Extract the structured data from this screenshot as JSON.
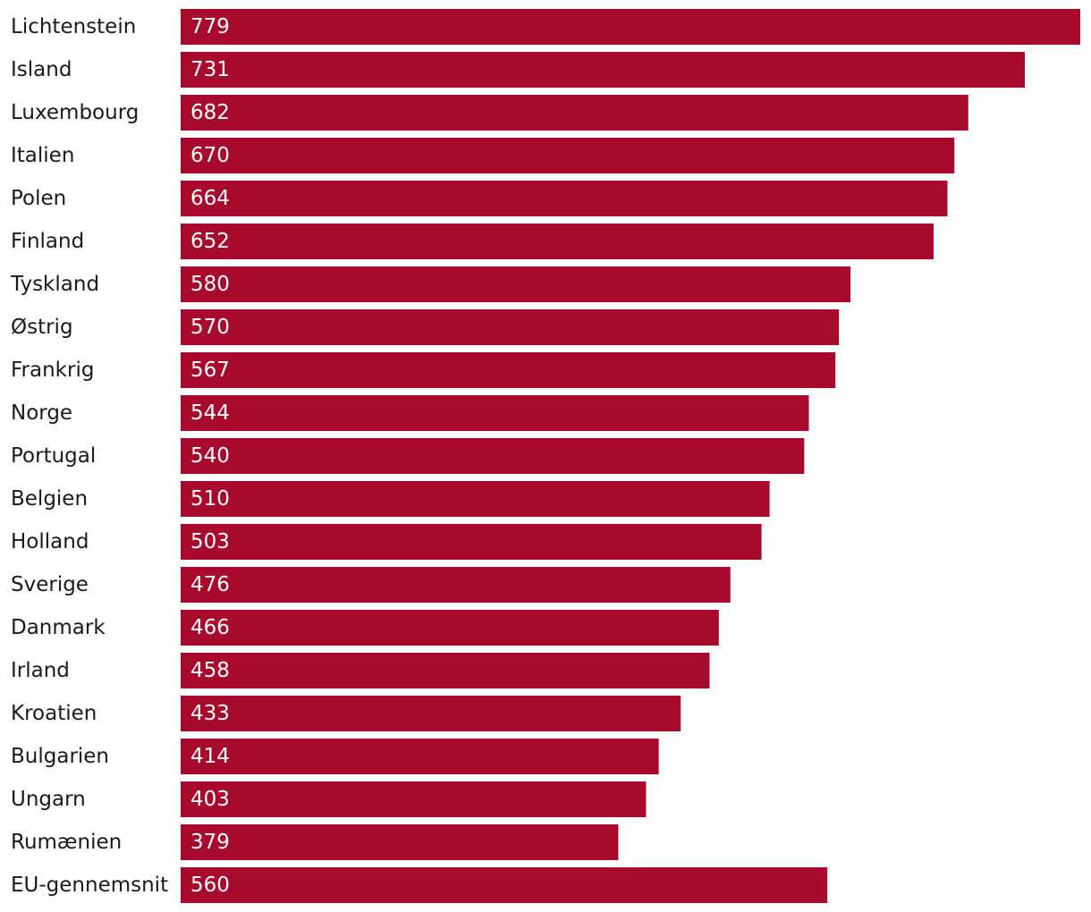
{
  "chart_data": {
    "type": "bar",
    "orientation": "horizontal",
    "title": "",
    "xlabel": "",
    "ylabel": "",
    "bar_color": "#a70a2d",
    "categories": [
      "Lichtenstein",
      "Island",
      "Luxembourg",
      "Italien",
      "Polen",
      "Finland",
      "Tyskland",
      "Østrig",
      "Frankrig",
      "Norge",
      "Portugal",
      "Belgien",
      "Holland",
      "Sverige",
      "Danmark",
      "Irland",
      "Kroatien",
      "Bulgarien",
      "Ungarn",
      "Rumænien",
      "EU-gennemsnit"
    ],
    "values": [
      779,
      731,
      682,
      670,
      664,
      652,
      580,
      570,
      567,
      544,
      540,
      510,
      503,
      476,
      466,
      458,
      433,
      414,
      403,
      379,
      560
    ],
    "xlim": [
      0,
      779
    ],
    "grid": false,
    "legend": "none"
  }
}
